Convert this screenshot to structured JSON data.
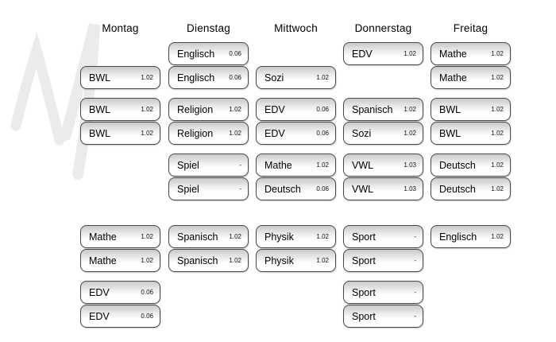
{
  "colors": {
    "background": "#ffffff",
    "watermark": "#ebebeb",
    "card_border": "#474747",
    "card_gradient_top": "#c9c9c9",
    "card_gradient_bottom": "#ffffff",
    "text": "#000000"
  },
  "watermark": {
    "name": "brush-m-watermark"
  },
  "days": [
    {
      "label": "Montag",
      "lessons": [
        {
          "row": 2,
          "subject": "BWL",
          "room": "1.02"
        },
        {
          "row": 3,
          "subject": "BWL",
          "room": "1.02"
        },
        {
          "row": 4,
          "subject": "BWL",
          "room": "1.02"
        },
        {
          "row": 7,
          "subject": "Mathe",
          "room": "1.02"
        },
        {
          "row": 8,
          "subject": "Mathe",
          "room": "1.02"
        },
        {
          "row": 9,
          "subject": "EDV",
          "room": "0.06"
        },
        {
          "row": 10,
          "subject": "EDV",
          "room": "0.06"
        }
      ]
    },
    {
      "label": "Dienstag",
      "lessons": [
        {
          "row": 1,
          "subject": "Englisch",
          "room": "0.06"
        },
        {
          "row": 2,
          "subject": "Englisch",
          "room": "0.06"
        },
        {
          "row": 3,
          "subject": "Religion",
          "room": "1.02"
        },
        {
          "row": 4,
          "subject": "Religion",
          "room": "1.02"
        },
        {
          "row": 5,
          "subject": "Spiel",
          "room": "-"
        },
        {
          "row": 6,
          "subject": "Spiel",
          "room": "-"
        },
        {
          "row": 7,
          "subject": "Spanisch",
          "room": "1.02"
        },
        {
          "row": 8,
          "subject": "Spanisch",
          "room": "1.02"
        }
      ]
    },
    {
      "label": "Mittwoch",
      "lessons": [
        {
          "row": 2,
          "subject": "Sozi",
          "room": "1.02"
        },
        {
          "row": 3,
          "subject": "EDV",
          "room": "0.06"
        },
        {
          "row": 4,
          "subject": "EDV",
          "room": "0.06"
        },
        {
          "row": 5,
          "subject": "Mathe",
          "room": "1.02"
        },
        {
          "row": 6,
          "subject": "Deutsch",
          "room": "0.06"
        },
        {
          "row": 7,
          "subject": "Physik",
          "room": "1.02"
        },
        {
          "row": 8,
          "subject": "Physik",
          "room": "1.02"
        }
      ]
    },
    {
      "label": "Donnerstag",
      "lessons": [
        {
          "row": 1,
          "subject": "EDV",
          "room": "1.02"
        },
        {
          "row": 3,
          "subject": "Spanisch",
          "room": "1.02"
        },
        {
          "row": 4,
          "subject": "Sozi",
          "room": "1.02"
        },
        {
          "row": 5,
          "subject": "VWL",
          "room": "1.03"
        },
        {
          "row": 6,
          "subject": "VWL",
          "room": "1.03"
        },
        {
          "row": 7,
          "subject": "Sport",
          "room": "-"
        },
        {
          "row": 8,
          "subject": "Sport",
          "room": "-"
        },
        {
          "row": 9,
          "subject": "Sport",
          "room": "-"
        },
        {
          "row": 10,
          "subject": "Sport",
          "room": "-"
        }
      ]
    },
    {
      "label": "Freitag",
      "lessons": [
        {
          "row": 1,
          "subject": "Mathe",
          "room": "1.02"
        },
        {
          "row": 2,
          "subject": "Mathe",
          "room": "1.02"
        },
        {
          "row": 3,
          "subject": "BWL",
          "room": "1.02"
        },
        {
          "row": 4,
          "subject": "BWL",
          "room": "1.02"
        },
        {
          "row": 5,
          "subject": "Deutsch",
          "room": "1.02"
        },
        {
          "row": 6,
          "subject": "Deutsch",
          "room": "1.02"
        },
        {
          "row": 7,
          "subject": "Englisch",
          "room": "1.02"
        }
      ]
    }
  ]
}
